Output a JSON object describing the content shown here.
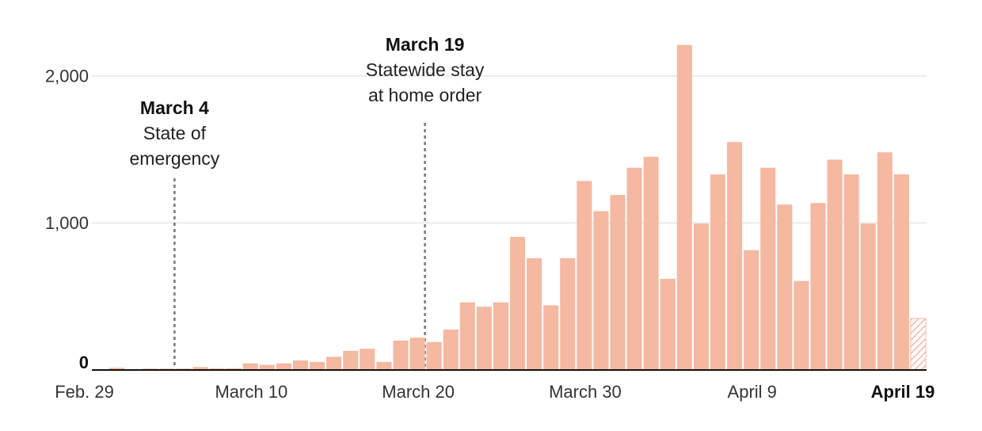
{
  "chart_data": {
    "type": "bar",
    "start_date_label": "Feb. 29",
    "y_ticks": [
      {
        "value": 0,
        "label": "0"
      },
      {
        "value": 1000,
        "label": "1,000"
      },
      {
        "value": 2000,
        "label": "2,000"
      }
    ],
    "x_ticks": [
      {
        "index": 0,
        "label": "Feb. 29",
        "bold": false
      },
      {
        "index": 10,
        "label": "March 10",
        "bold": false
      },
      {
        "index": 20,
        "label": "March 20",
        "bold": false
      },
      {
        "index": 30,
        "label": "March 30",
        "bold": false
      },
      {
        "index": 40,
        "label": "April 9",
        "bold": false
      },
      {
        "index": 50,
        "label": "April 19",
        "bold": true
      }
    ],
    "ylim": [
      0,
      2300
    ],
    "grid": true,
    "values": [
      0,
      15,
      0,
      10,
      10,
      10,
      20,
      12,
      12,
      45,
      35,
      45,
      65,
      55,
      90,
      130,
      145,
      55,
      200,
      220,
      190,
      275,
      460,
      430,
      460,
      905,
      760,
      440,
      760,
      1285,
      1080,
      1190,
      1375,
      1450,
      620,
      2210,
      995,
      1330,
      1550,
      815,
      1375,
      1125,
      605,
      1135,
      1430,
      1330,
      995,
      1480,
      1330,
      350
    ],
    "incomplete_indices": [
      49
    ],
    "colors": {
      "bar": "#f5b8a1",
      "hatch": "#f5b8a1",
      "grid": "#e6e6e6",
      "axis": "#111111",
      "annotation_line": "#777777"
    },
    "annotations": [
      {
        "index": 4,
        "title": "March 4",
        "lines": [
          "State of",
          "emergency"
        ]
      },
      {
        "index": 19,
        "title": "March 19",
        "lines": [
          "Statewide stay",
          "at home order"
        ]
      }
    ]
  }
}
